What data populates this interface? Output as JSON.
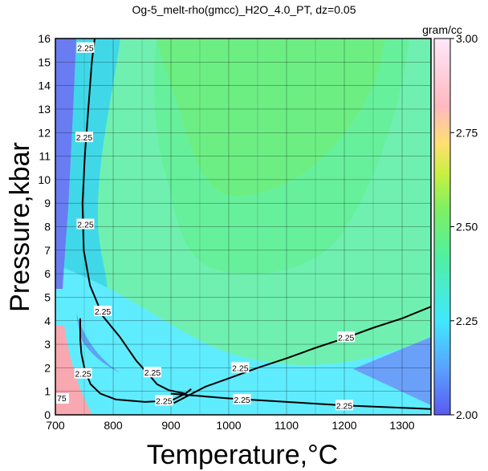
{
  "chart_data": {
    "type": "heatmap",
    "title": "Og-5_melt-rho(gmcc)_H2O_4.0_PT, dz=0.05",
    "xlabel": "Temperature,°C",
    "ylabel": "Pressure,kbar",
    "xlim": [
      700,
      1350
    ],
    "ylim": [
      0,
      16
    ],
    "x_ticks": [
      "700",
      "800",
      "900",
      "1000",
      "1100",
      "1200",
      "1300"
    ],
    "y_ticks": [
      "0",
      "1",
      "2",
      "3",
      "4",
      "5",
      "6",
      "7",
      "8",
      "9",
      "10",
      "11",
      "12",
      "13",
      "14",
      "15",
      "16"
    ],
    "grid": true,
    "colorbar": {
      "label": "gram/cc",
      "range": [
        2.0,
        3.0
      ],
      "ticks": [
        "2.00",
        "2.25",
        "2.50",
        "2.75",
        "3.00"
      ],
      "colors": [
        "#6060ff",
        "#40d8ff",
        "#50f090",
        "#b8f030",
        "#ffe070",
        "#ffc0d8",
        "#ffe6f8"
      ]
    },
    "contour_interval": 0.05,
    "labeled_contour_value": "2.25",
    "low_T_label": "75",
    "labeled_contours": [
      {
        "value": 2.25,
        "points": [
          [
            768,
            16
          ],
          [
            763,
            15
          ],
          [
            757,
            13
          ],
          [
            751,
            11
          ],
          [
            747,
            9
          ],
          [
            749,
            7
          ],
          [
            760,
            5.5
          ],
          [
            782,
            4.2
          ],
          [
            812,
            3.3
          ],
          [
            840,
            2.3
          ],
          [
            862,
            1.7
          ],
          [
            876,
            1.3
          ],
          [
            896,
            1.05
          ],
          [
            925,
            0.9
          ]
        ]
      },
      {
        "value": 2.25,
        "points": [
          [
            743,
            4.1
          ],
          [
            743,
            3.2
          ],
          [
            745,
            2.6
          ],
          [
            751,
            1.9
          ],
          [
            761,
            1.3
          ],
          [
            778,
            0.9
          ],
          [
            805,
            0.65
          ],
          [
            855,
            0.55
          ],
          [
            900,
            0.6
          ],
          [
            925,
            0.9
          ],
          [
            935,
            1.1
          ]
        ]
      },
      {
        "value": 2.25,
        "points": [
          [
            900,
            0.9
          ],
          [
            1000,
            0.7
          ],
          [
            1100,
            0.55
          ],
          [
            1200,
            0.4
          ],
          [
            1300,
            0.3
          ],
          [
            1350,
            0.25
          ]
        ]
      },
      {
        "value": 2.25,
        "points": [
          [
            905,
            0.5
          ],
          [
            960,
            1.2
          ],
          [
            1000,
            1.55
          ],
          [
            1050,
            2.0
          ],
          [
            1100,
            2.4
          ],
          [
            1150,
            2.85
          ],
          [
            1200,
            3.25
          ],
          [
            1250,
            3.7
          ],
          [
            1300,
            4.1
          ],
          [
            1350,
            4.6
          ]
        ]
      }
    ],
    "contour_labels": [
      {
        "text": "2.25",
        "x": 752,
        "y": 15.6
      },
      {
        "text": "2.25",
        "x": 750,
        "y": 11.8
      },
      {
        "text": "2.25",
        "x": 752,
        "y": 8.1
      },
      {
        "text": "2.25",
        "x": 782,
        "y": 4.4
      },
      {
        "text": "2.25",
        "x": 868,
        "y": 1.8
      },
      {
        "text": "2.25",
        "x": 748,
        "y": 1.75
      },
      {
        "text": "2.25",
        "x": 888,
        "y": 0.6
      },
      {
        "text": "2.25",
        "x": 1020,
        "y": 2.0
      },
      {
        "text": "2.25",
        "x": 1203,
        "y": 3.3
      },
      {
        "text": "2.25",
        "x": 1023,
        "y": 0.65
      },
      {
        "text": "2.25",
        "x": 1200,
        "y": 0.4
      }
    ]
  }
}
